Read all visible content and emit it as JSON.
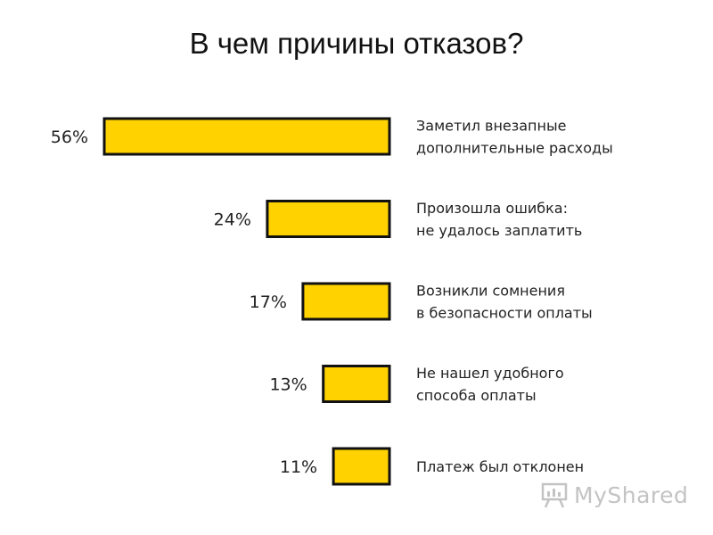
{
  "chart_data": {
    "type": "bar",
    "orientation": "horizontal",
    "title": "В чем причины отказов?",
    "categories": [
      [
        "Заметил внезапные",
        "дополнительные расходы"
      ],
      [
        "Произошла ошибка:",
        "не удалось заплатить"
      ],
      [
        "Возникли сомнения",
        "в безопасности оплаты"
      ],
      [
        "Не нашел удобного",
        "способа оплаты"
      ],
      [
        "Платеж был отклонен"
      ]
    ],
    "values": [
      56,
      24,
      17,
      13,
      11
    ],
    "value_labels": [
      "56%",
      "24%",
      "17%",
      "13%",
      "11%"
    ],
    "unit": "%",
    "bar_color": "#FFD200",
    "bar_outline": "#111111",
    "grid": false,
    "legend": "none"
  },
  "watermark": {
    "text": "MyShared",
    "icon": "presentation-board-icon"
  }
}
